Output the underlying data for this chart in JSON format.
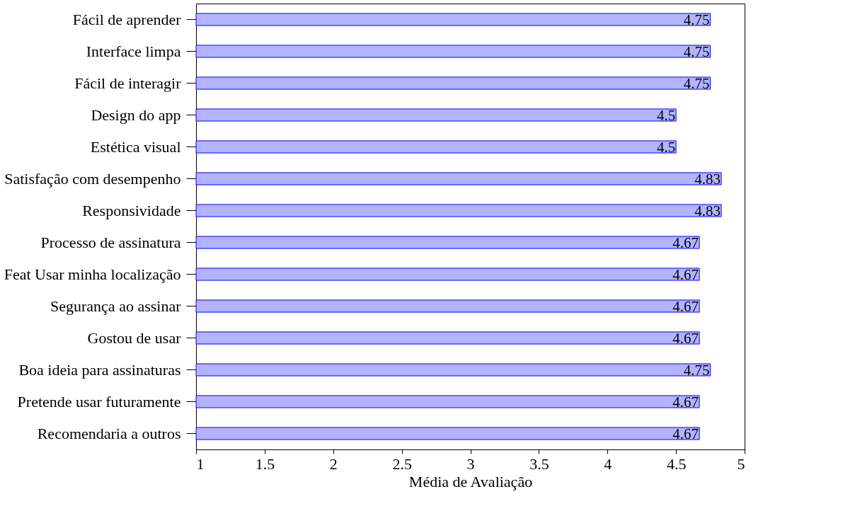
{
  "chart_data": {
    "type": "bar",
    "orientation": "horizontal",
    "xlabel": "Média de Avaliação",
    "categories": [
      "Fácil de aprender",
      "Interface limpa",
      "Fácil de interagir",
      "Design do app",
      "Estética visual",
      "Satisfação com desempenho",
      "Responsividade",
      "Processo de assinatura",
      "Feat Usar minha localização",
      "Segurança ao assinar",
      "Gostou de usar",
      "Boa ideia para assinaturas",
      "Pretende usar futuramente",
      "Recomendaria a outros"
    ],
    "values": [
      4.75,
      4.75,
      4.75,
      4.5,
      4.5,
      4.83,
      4.83,
      4.67,
      4.67,
      4.67,
      4.67,
      4.75,
      4.67,
      4.67
    ],
    "color": "#b3b3ff",
    "xlim": [
      1,
      5
    ],
    "xticks": [
      1,
      1.5,
      2,
      2.5,
      3,
      3.5,
      4,
      4.5,
      5
    ],
    "data_labels": true,
    "grid": false
  }
}
